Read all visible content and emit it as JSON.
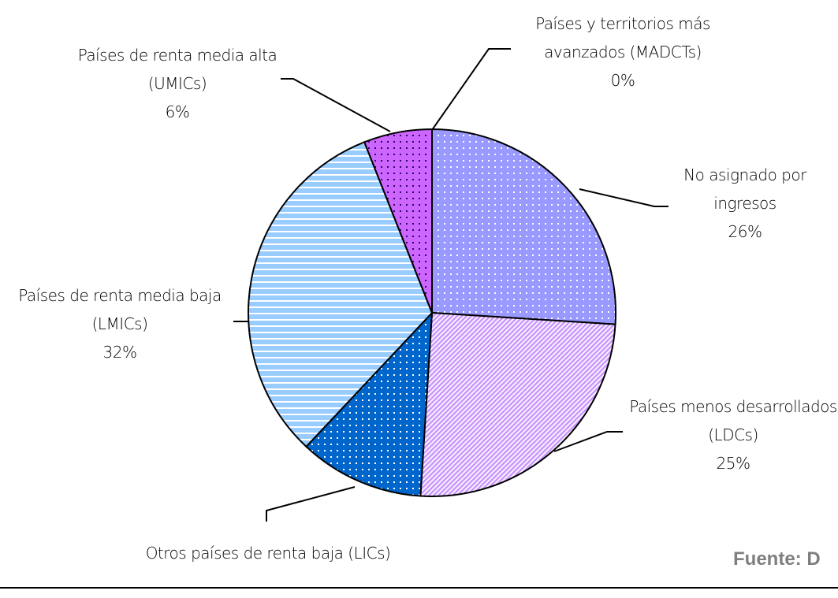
{
  "chart_data": {
    "type": "pie",
    "categories": [
      "Países y territorios más avanzados (MADCTs)",
      "No asignado por ingresos",
      "Países menos desarrollados (LDCs)",
      "Otros países de renta baja (LICs)",
      "Países de renta media baja (LMICs)",
      "Países de renta media alta (UMICs)"
    ],
    "values": [
      0,
      26,
      25,
      11,
      32,
      6
    ],
    "value_labels": [
      "0%",
      "26%",
      "25%",
      null,
      "32%",
      "6%"
    ],
    "colors": [
      "#cc99ff",
      "#9999ff",
      "#cc99ff",
      "#0066cc",
      "#99ccff",
      "#cc66ff"
    ],
    "patterns": [
      "dots",
      "dots",
      "diagonal",
      "dots",
      "horizontal",
      "dots"
    ],
    "source": "Fuente: D"
  }
}
